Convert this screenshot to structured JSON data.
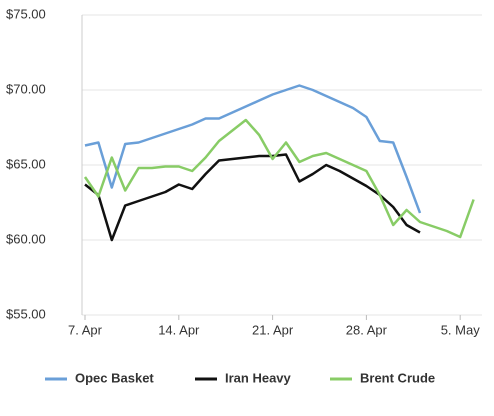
{
  "chart_data": {
    "type": "line",
    "categories": [
      "7. Apr",
      null,
      null,
      null,
      null,
      null,
      null,
      "14. Apr",
      null,
      null,
      null,
      null,
      null,
      null,
      "21. Apr",
      null,
      null,
      null,
      null,
      null,
      null,
      "28. Apr",
      null,
      null,
      null,
      null,
      null,
      null,
      "5. May",
      null,
      null
    ],
    "series": [
      {
        "name": "Opec Basket",
        "color": "#6a9fd8",
        "values": [
          66.3,
          66.5,
          63.5,
          66.4,
          66.5,
          66.8,
          67.1,
          67.4,
          67.7,
          68.1,
          68.1,
          68.5,
          68.9,
          69.3,
          69.7,
          70.0,
          70.3,
          70.0,
          69.6,
          69.2,
          68.8,
          68.2,
          66.6,
          66.5,
          64.2,
          61.8,
          null,
          null,
          null,
          null,
          null
        ]
      },
      {
        "name": "Iran Heavy",
        "color": "#111111",
        "values": [
          63.7,
          63.0,
          60.0,
          62.3,
          62.6,
          62.9,
          63.2,
          63.7,
          63.4,
          64.4,
          65.3,
          65.4,
          65.5,
          65.6,
          65.6,
          65.7,
          63.9,
          64.4,
          65.0,
          64.6,
          64.1,
          63.6,
          63.0,
          62.2,
          61.0,
          60.5,
          null,
          null,
          null,
          null,
          null
        ]
      },
      {
        "name": "Brent Crude",
        "color": "#88cc66",
        "values": [
          64.2,
          62.9,
          65.5,
          63.3,
          64.8,
          64.8,
          64.9,
          64.9,
          64.6,
          65.5,
          66.6,
          67.3,
          68.0,
          67.0,
          65.4,
          66.5,
          65.2,
          65.6,
          65.8,
          65.4,
          65.0,
          64.6,
          63.0,
          61.0,
          62.0,
          61.2,
          60.9,
          60.6,
          60.2,
          62.7,
          null
        ]
      }
    ],
    "ylim": [
      55,
      75
    ],
    "yticks": [
      {
        "value": 55,
        "label": "$55.00"
      },
      {
        "value": 60,
        "label": "$60.00"
      },
      {
        "value": 65,
        "label": "$65.00"
      },
      {
        "value": 70,
        "label": "$70.00"
      },
      {
        "value": 75,
        "label": "$75.00"
      }
    ],
    "grid": true
  }
}
